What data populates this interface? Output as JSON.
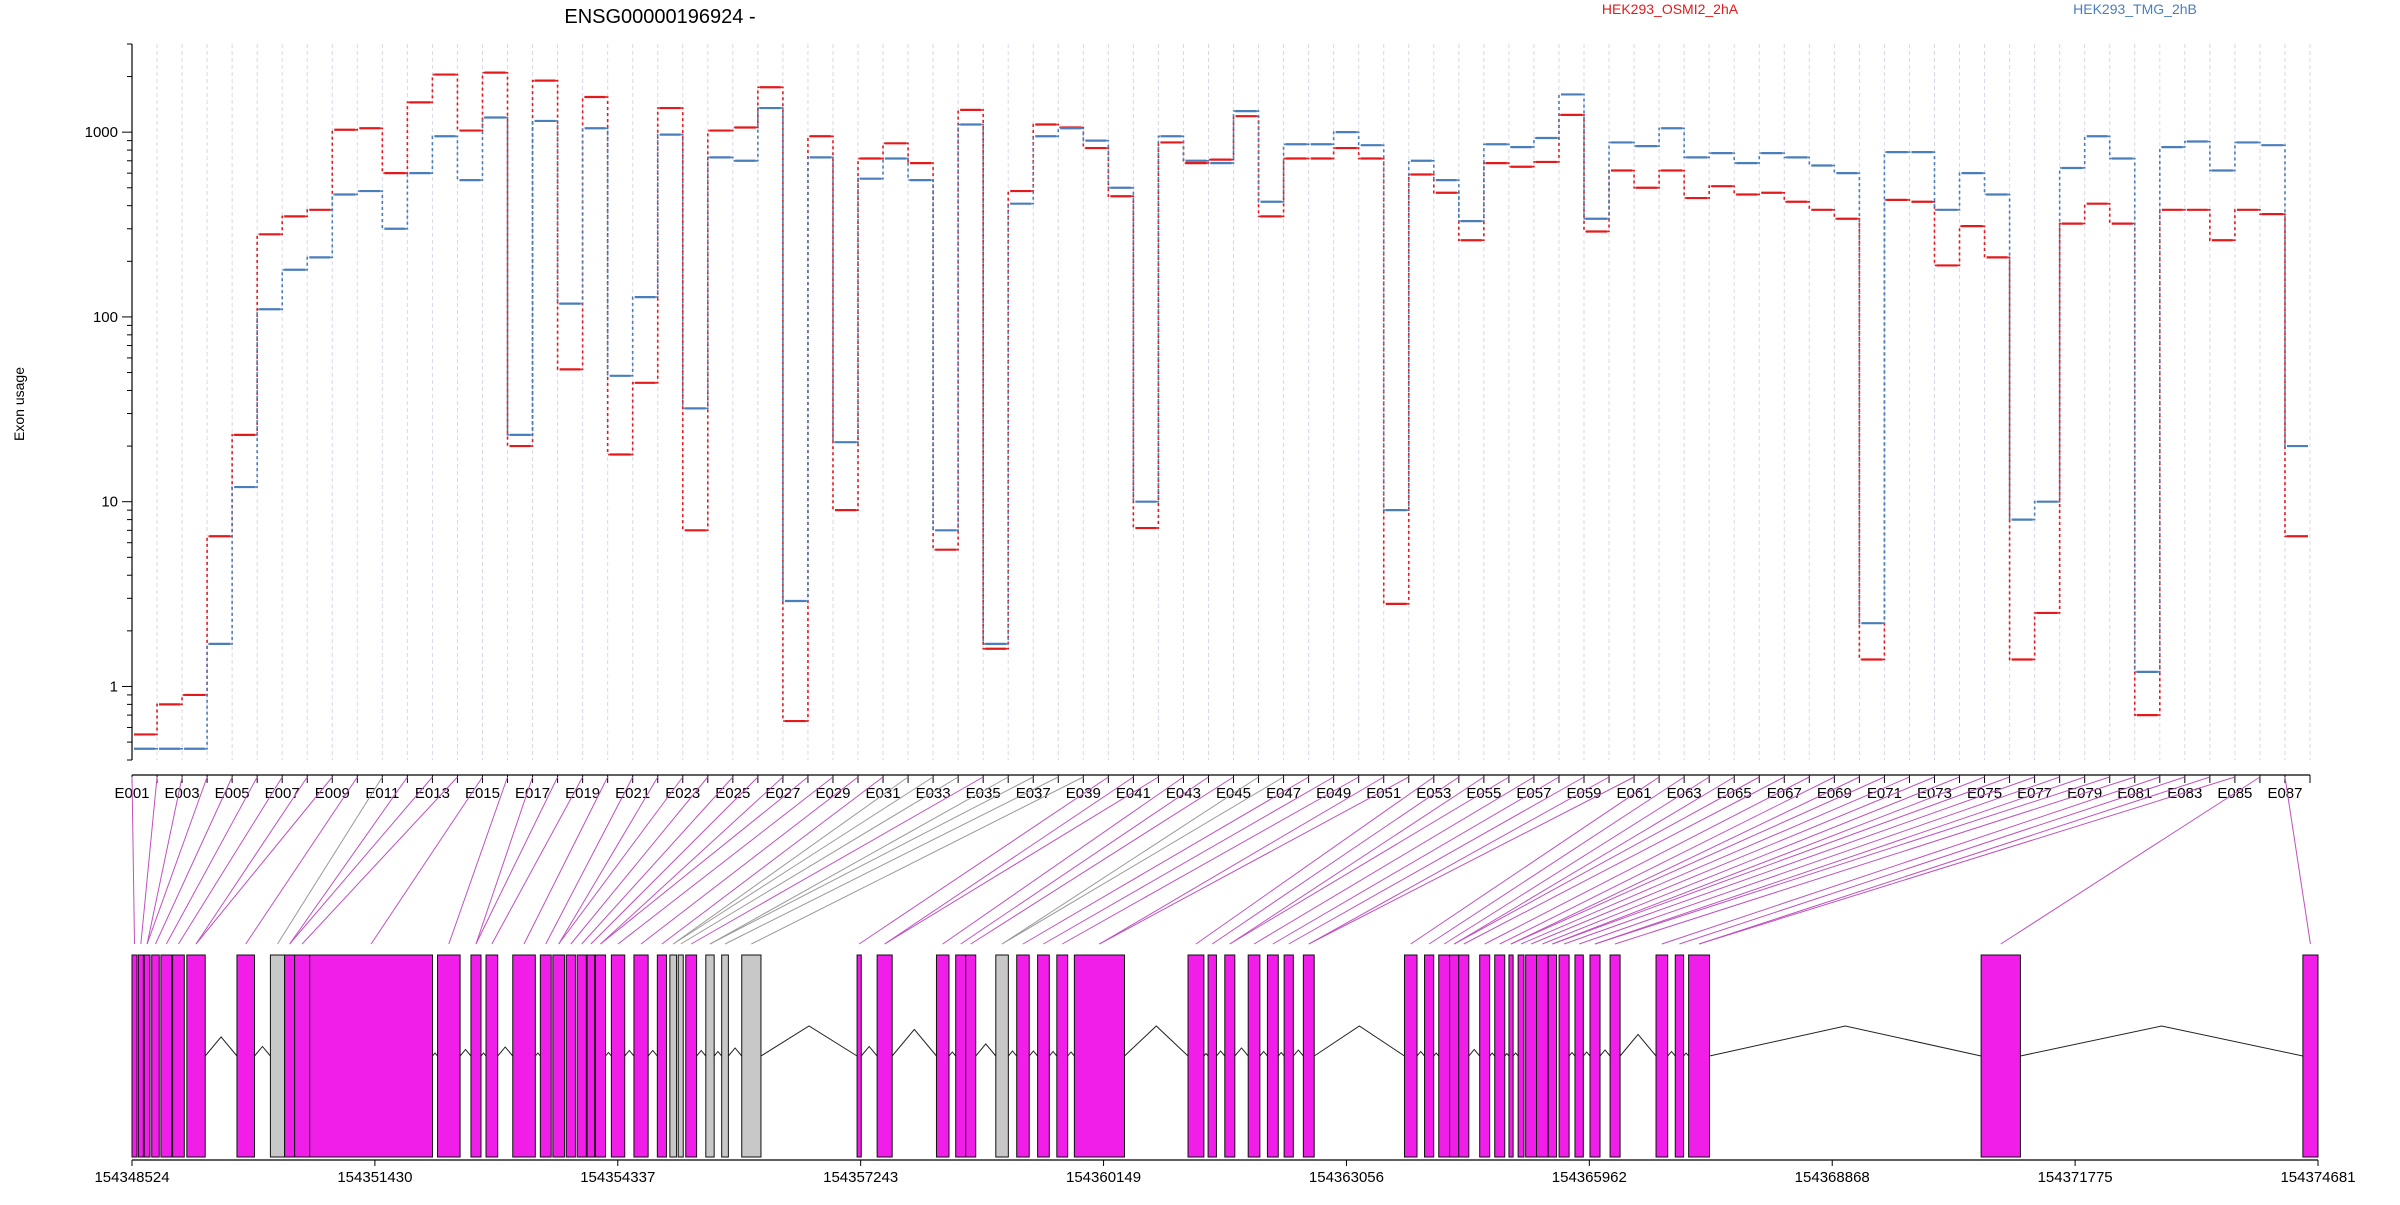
{
  "chart_data": {
    "type": "line",
    "title": "ENSG00000196924 -",
    "ylabel": "Exon usage",
    "xlabel": "",
    "yscale": "log",
    "ylim": [
      0.4,
      3000
    ],
    "yticks": [
      1,
      10,
      100,
      1000
    ],
    "categories": [
      "E001",
      "E002",
      "E003",
      "E004",
      "E005",
      "E006",
      "E007",
      "E008",
      "E009",
      "E010",
      "E011",
      "E012",
      "E013",
      "E014",
      "E015",
      "E016",
      "E017",
      "E018",
      "E019",
      "E020",
      "E021",
      "E022",
      "E023",
      "E024",
      "E025",
      "E026",
      "E027",
      "E028",
      "E029",
      "E030",
      "E031",
      "E032",
      "E033",
      "E034",
      "E035",
      "E036",
      "E037",
      "E038",
      "E039",
      "E040",
      "E041",
      "E042",
      "E043",
      "E044",
      "E045",
      "E046",
      "E047",
      "E048",
      "E049",
      "E050",
      "E051",
      "E052",
      "E053",
      "E054",
      "E055",
      "E056",
      "E057",
      "E058",
      "E059",
      "E060",
      "E061",
      "E062",
      "E063",
      "E064",
      "E065",
      "E066",
      "E067",
      "E068",
      "E069",
      "E070",
      "E071",
      "E072",
      "E073",
      "E074",
      "E075",
      "E076",
      "E077",
      "E078",
      "E079",
      "E080",
      "E081",
      "E082",
      "E083",
      "E084",
      "E085",
      "E086",
      "E087"
    ],
    "series": [
      {
        "name": "HEK293_OSMI2_2hA",
        "color": "#e31a1c",
        "values": [
          0.55,
          0.8,
          0.9,
          6.5,
          23,
          280,
          350,
          380,
          1030,
          1050,
          600,
          1450,
          2050,
          1020,
          2100,
          20,
          1900,
          52,
          1550,
          18,
          44,
          1350,
          7,
          1020,
          1060,
          1750,
          0.65,
          950,
          9,
          720,
          870,
          680,
          5.5,
          1320,
          1.6,
          480,
          1100,
          1060,
          820,
          450,
          7.2,
          880,
          680,
          710,
          1220,
          350,
          720,
          720,
          820,
          720,
          2.8,
          590,
          470,
          260,
          680,
          650,
          690,
          1240,
          290,
          620,
          500,
          620,
          440,
          510,
          460,
          470,
          420,
          380,
          340,
          1.4,
          430,
          420,
          190,
          310,
          210,
          1.4,
          2.5,
          320,
          410,
          320,
          0.7,
          380,
          380,
          260,
          380,
          360,
          6.5
        ]
      },
      {
        "name": "HEK293_TMG_2hB",
        "color": "#4a7ebb",
        "values": [
          0.46,
          0.46,
          0.46,
          1.7,
          12,
          110,
          180,
          210,
          460,
          480,
          300,
          600,
          950,
          550,
          1200,
          23,
          1150,
          118,
          1050,
          48,
          128,
          970,
          32,
          730,
          700,
          1350,
          2.9,
          730,
          21,
          560,
          720,
          550,
          7,
          1100,
          1.7,
          410,
          950,
          1050,
          900,
          500,
          10,
          950,
          700,
          680,
          1300,
          420,
          860,
          860,
          1000,
          850,
          9,
          700,
          550,
          330,
          860,
          830,
          930,
          1600,
          340,
          880,
          840,
          1050,
          730,
          770,
          680,
          770,
          730,
          660,
          600,
          2.2,
          780,
          780,
          380,
          600,
          460,
          8,
          10,
          640,
          950,
          720,
          1.2,
          830,
          890,
          620,
          880,
          850,
          20
        ]
      }
    ],
    "genomic_axis": {
      "tick_labels": [
        "154348524",
        "154351430",
        "154354337",
        "154357243",
        "154360149",
        "154363056",
        "154365962",
        "154368868",
        "154371775",
        "154374681"
      ]
    }
  }
}
